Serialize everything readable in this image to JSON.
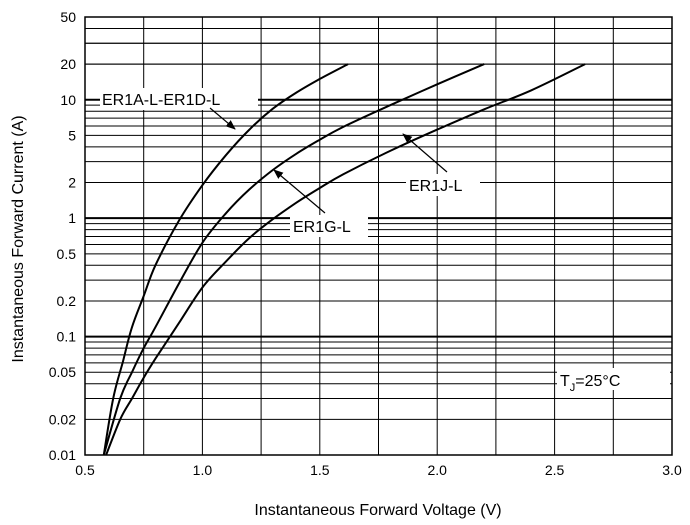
{
  "chart_data": {
    "type": "line",
    "x_scale": "linear",
    "y_scale": "log",
    "xlabel": "Instantaneous Forward Voltage (V)",
    "ylabel": "Instantaneous Forward Current (A)",
    "xlim": [
      0.5,
      3.0
    ],
    "ylim": [
      0.01,
      50
    ],
    "x_ticks": [
      0.5,
      1.0,
      1.5,
      2.0,
      2.5,
      3.0
    ],
    "x_tick_labels": [
      "0.5",
      "1.0",
      "1.5",
      "2.0",
      "2.5",
      "3.0"
    ],
    "y_ticks": [
      0.01,
      0.02,
      0.05,
      0.1,
      0.2,
      0.5,
      1,
      2,
      5,
      10,
      20,
      50
    ],
    "y_tick_labels": [
      "0.01",
      "0.02",
      "0.05",
      "0.1",
      "0.2",
      "0.5",
      "1",
      "2",
      "5",
      "10",
      "20",
      "50"
    ],
    "grid": true,
    "series": [
      {
        "name": "ER1A-L-ER1D-L",
        "x": [
          0.58,
          0.62,
          0.66,
          0.7,
          0.75,
          0.8,
          0.9,
          1.0,
          1.1,
          1.2,
          1.3,
          1.4,
          1.5,
          1.62
        ],
        "y": [
          0.01,
          0.03,
          0.06,
          0.12,
          0.22,
          0.4,
          0.95,
          1.9,
          3.4,
          5.6,
          8.4,
          11.5,
          15.0,
          20.0
        ]
      },
      {
        "name": "ER1G-L",
        "x": [
          0.58,
          0.65,
          0.7,
          0.75,
          0.8,
          0.9,
          1.0,
          1.1,
          1.2,
          1.3,
          1.4,
          1.5,
          1.6,
          1.8,
          2.0,
          2.2
        ],
        "y": [
          0.01,
          0.03,
          0.05,
          0.08,
          0.12,
          0.28,
          0.62,
          1.1,
          1.75,
          2.55,
          3.5,
          4.6,
          5.9,
          9.0,
          13.5,
          20.0
        ]
      },
      {
        "name": "ER1J-L",
        "x": [
          0.59,
          0.65,
          0.7,
          0.75,
          0.8,
          0.9,
          1.0,
          1.1,
          1.2,
          1.3,
          1.4,
          1.5,
          1.6,
          1.8,
          2.0,
          2.2,
          2.4,
          2.63
        ],
        "y": [
          0.01,
          0.02,
          0.03,
          0.045,
          0.065,
          0.13,
          0.26,
          0.43,
          0.68,
          0.98,
          1.35,
          1.8,
          2.35,
          3.7,
          5.6,
          8.3,
          12.0,
          20.0
        ]
      }
    ],
    "annotations": {
      "a_d": "ER1A-L-ER1D-L",
      "g": "ER1G-L",
      "j": "ER1J-L",
      "tj_prefix": "T",
      "tj_sub": "J",
      "tj_suffix": "=25°C"
    }
  }
}
